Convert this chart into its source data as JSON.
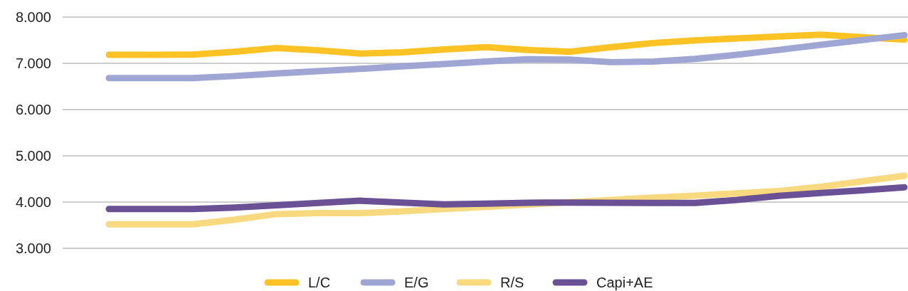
{
  "chart_data": {
    "type": "line",
    "categories": [
      null,
      null,
      null,
      null,
      null,
      null,
      null,
      null,
      null,
      null,
      null,
      null,
      null,
      null,
      null,
      null,
      null,
      null,
      null,
      null
    ],
    "series": [
      {
        "name": "L/C",
        "color": "#fdc325",
        "values": [
          7185,
          7185,
          7190,
          7250,
          7330,
          7280,
          7210,
          7240,
          7300,
          7350,
          7290,
          7250,
          7350,
          7440,
          7495,
          7540,
          7580,
          7620,
          7565,
          7510
        ]
      },
      {
        "name": "E/G",
        "color": "#a0a6d4",
        "values": [
          6680,
          6680,
          6680,
          6725,
          6780,
          6830,
          6880,
          6935,
          6985,
          7040,
          7090,
          7080,
          7025,
          7040,
          7095,
          7185,
          7290,
          7400,
          7505,
          7610
        ]
      },
      {
        "name": "R/S",
        "color": "#f8d97f",
        "values": [
          3520,
          3520,
          3520,
          3620,
          3740,
          3760,
          3760,
          3800,
          3850,
          3895,
          3945,
          3995,
          4045,
          4095,
          4140,
          4190,
          4240,
          4330,
          4450,
          4570
        ]
      },
      {
        "name": "Capi+AE",
        "color": "#6a5095",
        "values": [
          3850,
          3850,
          3850,
          3880,
          3930,
          3980,
          4030,
          3990,
          3950,
          3965,
          3985,
          3990,
          3985,
          3980,
          3980,
          4045,
          4135,
          4195,
          4255,
          4320
        ]
      }
    ],
    "ylim": [
      3000,
      8000
    ],
    "yticks": [
      {
        "value": 3000,
        "label": "3.000"
      },
      {
        "value": 4000,
        "label": "4.000"
      },
      {
        "value": 5000,
        "label": "5.000"
      },
      {
        "value": 6000,
        "label": "6.000"
      },
      {
        "value": 7000,
        "label": "7.000"
      },
      {
        "value": 8000,
        "label": "8.000"
      }
    ],
    "grid": "y",
    "legend": "bottom",
    "tick_labels": "y",
    "line_style": "solid"
  }
}
